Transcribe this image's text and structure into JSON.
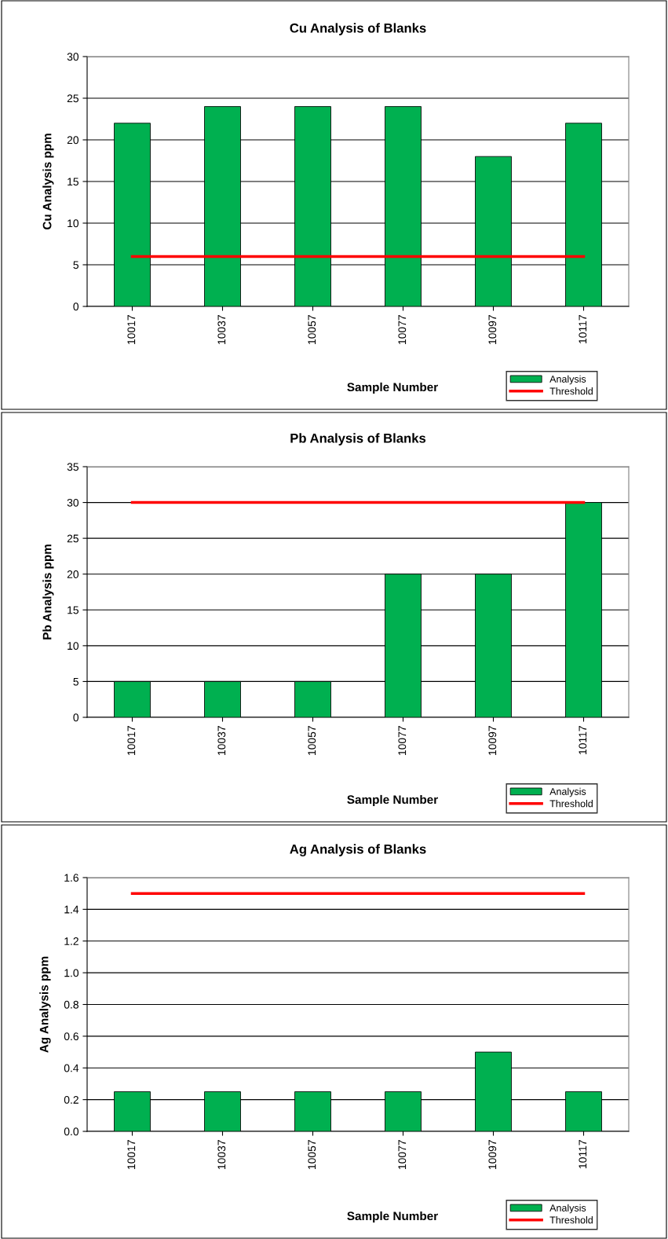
{
  "chart_data": [
    {
      "type": "bar",
      "title": "Cu Analysis of Blanks",
      "xlabel": "Sample Number",
      "ylabel": "Cu Analysis ppm",
      "categories": [
        "10017",
        "10037",
        "10057",
        "10077",
        "10097",
        "10117"
      ],
      "series": [
        {
          "name": "Analysis",
          "color": "#00b050",
          "values": [
            22,
            24,
            24,
            24,
            18,
            22
          ]
        },
        {
          "name": "Threshold",
          "type": "line",
          "color": "#ff0000",
          "values": [
            6,
            6,
            6,
            6,
            6,
            6
          ]
        }
      ],
      "ylim": [
        0,
        30
      ],
      "yticks": [
        0,
        5,
        10,
        15,
        20,
        25,
        30
      ],
      "grid": "y",
      "legend": "bottom right"
    },
    {
      "type": "bar",
      "title": "Pb Analysis of Blanks",
      "xlabel": "Sample Number",
      "ylabel": "Pb Analysis ppm",
      "categories": [
        "10017",
        "10037",
        "10057",
        "10077",
        "10097",
        "10117"
      ],
      "series": [
        {
          "name": "Analysis",
          "color": "#00b050",
          "values": [
            5,
            5,
            5,
            20,
            20,
            30
          ]
        },
        {
          "name": "Threshold",
          "type": "line",
          "color": "#ff0000",
          "values": [
            30,
            30,
            30,
            30,
            30,
            30
          ]
        }
      ],
      "ylim": [
        0,
        35
      ],
      "yticks": [
        0,
        5,
        10,
        15,
        20,
        25,
        30,
        35
      ],
      "grid": "y",
      "legend": "bottom right"
    },
    {
      "type": "bar",
      "title": "Ag Analysis of Blanks",
      "xlabel": "Sample Number",
      "ylabel": "Ag Analysis ppm",
      "categories": [
        "10017",
        "10037",
        "10057",
        "10077",
        "10097",
        "10117"
      ],
      "series": [
        {
          "name": "Analysis",
          "color": "#00b050",
          "values": [
            0.25,
            0.25,
            0.25,
            0.25,
            0.5,
            0.25
          ]
        },
        {
          "name": "Threshold",
          "type": "line",
          "color": "#ff0000",
          "values": [
            1.5,
            1.5,
            1.5,
            1.5,
            1.5,
            1.5
          ]
        }
      ],
      "ylim": [
        0,
        1.6
      ],
      "yticks": [
        {
          "value": 0,
          "label": "0.0"
        },
        {
          "value": 0.2,
          "label": "0.2"
        },
        {
          "value": 0.4,
          "label": "0.4"
        },
        {
          "value": 0.6,
          "label": "0.6"
        },
        {
          "value": 0.8,
          "label": "0.8"
        },
        {
          "value": 1.0,
          "label": "1.0"
        },
        {
          "value": 1.2,
          "label": "1.2"
        },
        {
          "value": 1.4,
          "label": "1.4"
        },
        {
          "value": 1.6,
          "label": "1.6"
        }
      ],
      "grid": "y",
      "legend": "bottom right"
    }
  ]
}
